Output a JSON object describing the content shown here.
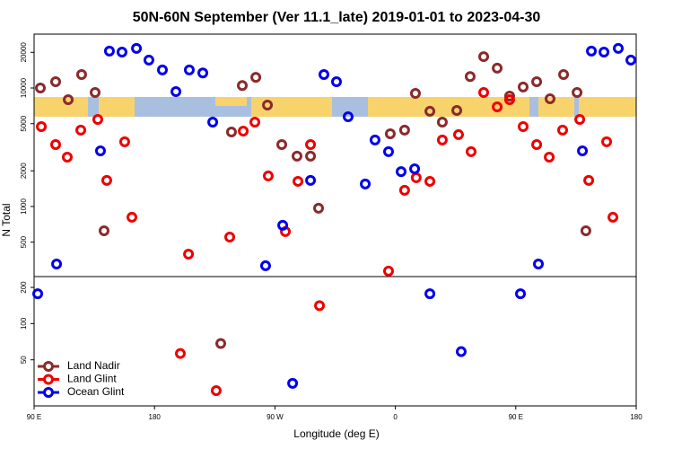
{
  "chart_data": [
    {
      "type": "scatter",
      "title": "50N-60N September (Ver 11.1_late)   2019-01-01 to 2023-04-30",
      "ylabel": "N Total",
      "log_y": true,
      "xlim": [
        90,
        540
      ],
      "ylim": [
        256,
        28500
      ],
      "yticks": [
        500,
        1000,
        2000,
        5000,
        10000,
        20000
      ],
      "series": [
        {
          "name": "Land Nadir",
          "color": "#8b2a2a",
          "x": [
            94.7,
            106.1,
            115.5,
            125.5,
            135.6,
            142.3,
            237.5,
            245.6,
            255.7,
            264.4,
            275.1,
            286.5,
            296.6,
            302.6,
            356.2,
            366.9,
            375.0,
            385.8,
            395.1,
            405.9,
            415.9,
            426.0,
            436.1,
            445.4,
            455.5,
            465.6,
            475.6,
            485.7,
            495.8,
            502.4
          ],
          "values": [
            10000,
            11300,
            7970,
            13000,
            9170,
            624,
            4250,
            10500,
            12300,
            7180,
            3330,
            2660,
            2660,
            966,
            4110,
            4410,
            9000,
            6360,
            5150,
            6470,
            12500,
            18400,
            14700,
            8550,
            10200,
            11300,
            8110,
            13000,
            9170,
            624
          ]
        },
        {
          "name": "Land Glint",
          "color": "#ee0000",
          "x": [
            95.4,
            106.1,
            114.8,
            124.9,
            137.6,
            144.3,
            157.7,
            163.1,
            205.4,
            236.2,
            246.3,
            255.0,
            265.0,
            277.8,
            287.2,
            296.6,
            354.9,
            366.9,
            375.6,
            385.8,
            395.1,
            407.2,
            416.6,
            426.0,
            436.1,
            445.4,
            455.5,
            465.6,
            475.0,
            485.0,
            497.8,
            504.5,
            517.9,
            522.6
          ],
          "values": [
            4720,
            3330,
            2610,
            4410,
            5430,
            1660,
            3520,
            811,
            396,
            552,
            4330,
            5150,
            1810,
            614,
            1630,
            3330,
            285,
            1370,
            1750,
            1630,
            3640,
            4040,
            2900,
            9170,
            6930,
            7970,
            4720,
            3330,
            2610,
            4410,
            5430,
            1660,
            3520,
            811
          ]
        },
        {
          "name": "Ocean Glint",
          "color": "#0000ee",
          "x": [
            106.8,
            139.6,
            146.3,
            155.7,
            166.5,
            175.8,
            185.9,
            196.0,
            206.0,
            216.1,
            223.5,
            263.0,
            275.8,
            296.6,
            306.6,
            316.0,
            324.7,
            337.5,
            344.8,
            354.9,
            364.3,
            374.4,
            466.9,
            499.8,
            506.5,
            515.9,
            526.6,
            536.0
          ],
          "values": [
            327,
            2950,
            20500,
            20100,
            21600,
            17200,
            14200,
            9330,
            14200,
            13400,
            5150,
            316,
            694,
            1660,
            13000,
            11300,
            5720,
            1550,
            3640,
            2900,
            1970,
            2080,
            327,
            2950,
            20500,
            20100,
            21600,
            17200
          ]
        }
      ]
    },
    {
      "type": "scatter",
      "xlabel": "Longitude (deg E)",
      "log_y": true,
      "xlim": [
        90,
        540
      ],
      "xticks": [
        {
          "value": 90,
          "label": "90 E"
        },
        180,
        {
          "value": 270,
          "label": "90 W"
        },
        {
          "value": 360,
          "label": "0"
        },
        {
          "value": 450,
          "label": "90 E"
        },
        {
          "value": 540,
          "label": "180"
        }
      ],
      "ylim": [
        20.7,
        246
      ],
      "yticks": [
        50,
        100,
        200
      ],
      "legend": "lower left",
      "series": [
        {
          "name": "Land Nadir",
          "color": "#8b2a2a",
          "x": [
            229.5
          ],
          "values": [
            68.3
          ]
        },
        {
          "name": "Land Glint",
          "color": "#ee0000",
          "x": [
            199.3,
            226.1,
            303.3
          ],
          "values": [
            56.4,
            27.7,
            141
          ]
        },
        {
          "name": "Ocean Glint",
          "color": "#0000ee",
          "x": [
            92.7,
            283.2,
            385.8,
            409.2,
            453.5
          ],
          "values": [
            177,
            31.9,
            177,
            58.5,
            177
          ]
        }
      ]
    }
  ]
}
